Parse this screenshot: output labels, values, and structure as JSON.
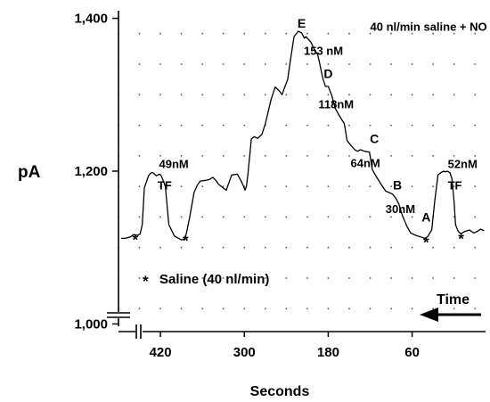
{
  "chart_data": {
    "type": "line",
    "title": "",
    "xlabel": "Seconds",
    "ylabel": "pA",
    "x_reversed": true,
    "xlim": [
      480,
      -45
    ],
    "ylim": [
      990,
      1410
    ],
    "xticks": [
      {
        "value": 420,
        "label": "420"
      },
      {
        "value": 300,
        "label": "300"
      },
      {
        "value": 180,
        "label": "180"
      },
      {
        "value": 60,
        "label": "60"
      }
    ],
    "yticks": [
      {
        "value": 1400,
        "label": "1,400"
      },
      {
        "value": 1200,
        "label": "1,200"
      },
      {
        "value": 1000,
        "label": "1,000"
      }
    ],
    "grid": "dotted",
    "series": [
      {
        "name": "",
        "x": [
          476,
          470,
          463,
          458,
          452,
          449,
          446,
          443,
          437,
          433,
          431,
          426,
          421,
          419,
          417,
          413,
          408,
          400,
          394,
          390,
          386,
          383,
          378,
          372,
          367,
          363,
          355,
          350,
          345,
          340,
          337,
          333,
          326,
          318,
          310,
          305,
          301,
          299,
          297,
          295,
          290,
          286,
          281,
          275,
          270,
          262,
          256,
          250,
          246,
          243,
          238,
          234,
          229,
          223,
          218,
          214,
          212,
          205,
          200,
          195,
          192,
          188,
          184,
          180,
          175,
          170,
          165,
          161,
          157,
          153,
          147,
          142,
          138,
          134,
          128,
          121,
          117,
          112,
          104,
          98,
          93,
          88,
          83,
          79,
          74,
          67,
          62,
          55,
          48,
          42,
          38,
          32,
          28,
          23,
          19,
          15,
          13,
          10,
          6,
          3,
          0,
          -2,
          -6,
          -10,
          -15,
          -22,
          -28,
          -33,
          -38,
          -43
        ],
        "y": [
          1112,
          1112,
          1114,
          1117,
          1116,
          1118,
          1130,
          1178,
          1194,
          1198,
          1198,
          1194,
          1196,
          1194,
          1190,
          1180,
          1130,
          1115,
          1112,
          1110,
          1111,
          1118,
          1140,
          1172,
          1182,
          1187,
          1188,
          1189,
          1192,
          1187,
          1183,
          1180,
          1175,
          1195,
          1196,
          1188,
          1180,
          1175,
          1180,
          1195,
          1242,
          1245,
          1243,
          1248,
          1262,
          1293,
          1310,
          1305,
          1300,
          1308,
          1320,
          1346,
          1376,
          1383,
          1381,
          1374,
          1376,
          1369,
          1360,
          1352,
          1340,
          1322,
          1311,
          1311,
          1299,
          1282,
          1274,
          1268,
          1262,
          1240,
          1233,
          1228,
          1226,
          1228,
          1226,
          1225,
          1202,
          1194,
          1182,
          1174,
          1172,
          1170,
          1164,
          1157,
          1142,
          1127,
          1119,
          1116,
          1114,
          1112,
          1114,
          1123,
          1158,
          1195,
          1198,
          1200,
          1199,
          1200,
          1198,
          1190,
          1160,
          1130,
          1121,
          1118,
          1121,
          1123,
          1119,
          1121,
          1124,
          1122
        ]
      }
    ],
    "annotations": [
      {
        "text": "40 nl/min saline + NO",
        "x": 120,
        "y": 1384,
        "kind": "text"
      },
      {
        "text": "E",
        "x": 218,
        "y": 1388,
        "kind": "letter"
      },
      {
        "text": "153 nM",
        "x": 215,
        "y": 1352,
        "kind": "text"
      },
      {
        "text": "D",
        "x": 180,
        "y": 1322,
        "kind": "letter"
      },
      {
        "text": "118nM",
        "x": 194,
        "y": 1282,
        "kind": "text"
      },
      {
        "text": "C",
        "x": 114,
        "y": 1237,
        "kind": "letter"
      },
      {
        "text": "64nM",
        "x": 148,
        "y": 1205,
        "kind": "text"
      },
      {
        "text": "B",
        "x": 81,
        "y": 1176,
        "kind": "letter"
      },
      {
        "text": "30nM",
        "x": 98,
        "y": 1145,
        "kind": "text"
      },
      {
        "text": "A",
        "x": 40,
        "y": 1134,
        "kind": "letter"
      },
      {
        "text": "49nM",
        "x": 422,
        "y": 1204,
        "kind": "text"
      },
      {
        "text": "TF",
        "x": 424,
        "y": 1176,
        "kind": "text"
      },
      {
        "text": "52nM",
        "x": 9,
        "y": 1204,
        "kind": "text"
      },
      {
        "text": "TF",
        "x": 9,
        "y": 1176,
        "kind": "text"
      }
    ],
    "markers": [
      {
        "symbol": "*",
        "x": 456
      },
      {
        "symbol": "*",
        "x": 384
      },
      {
        "symbol": "*",
        "x": 40
      },
      {
        "symbol": "*",
        "x": -10
      }
    ],
    "legend": {
      "symbol": "*",
      "text": "Saline (40 nl/min)"
    },
    "time_arrow": {
      "text": "Time"
    }
  }
}
